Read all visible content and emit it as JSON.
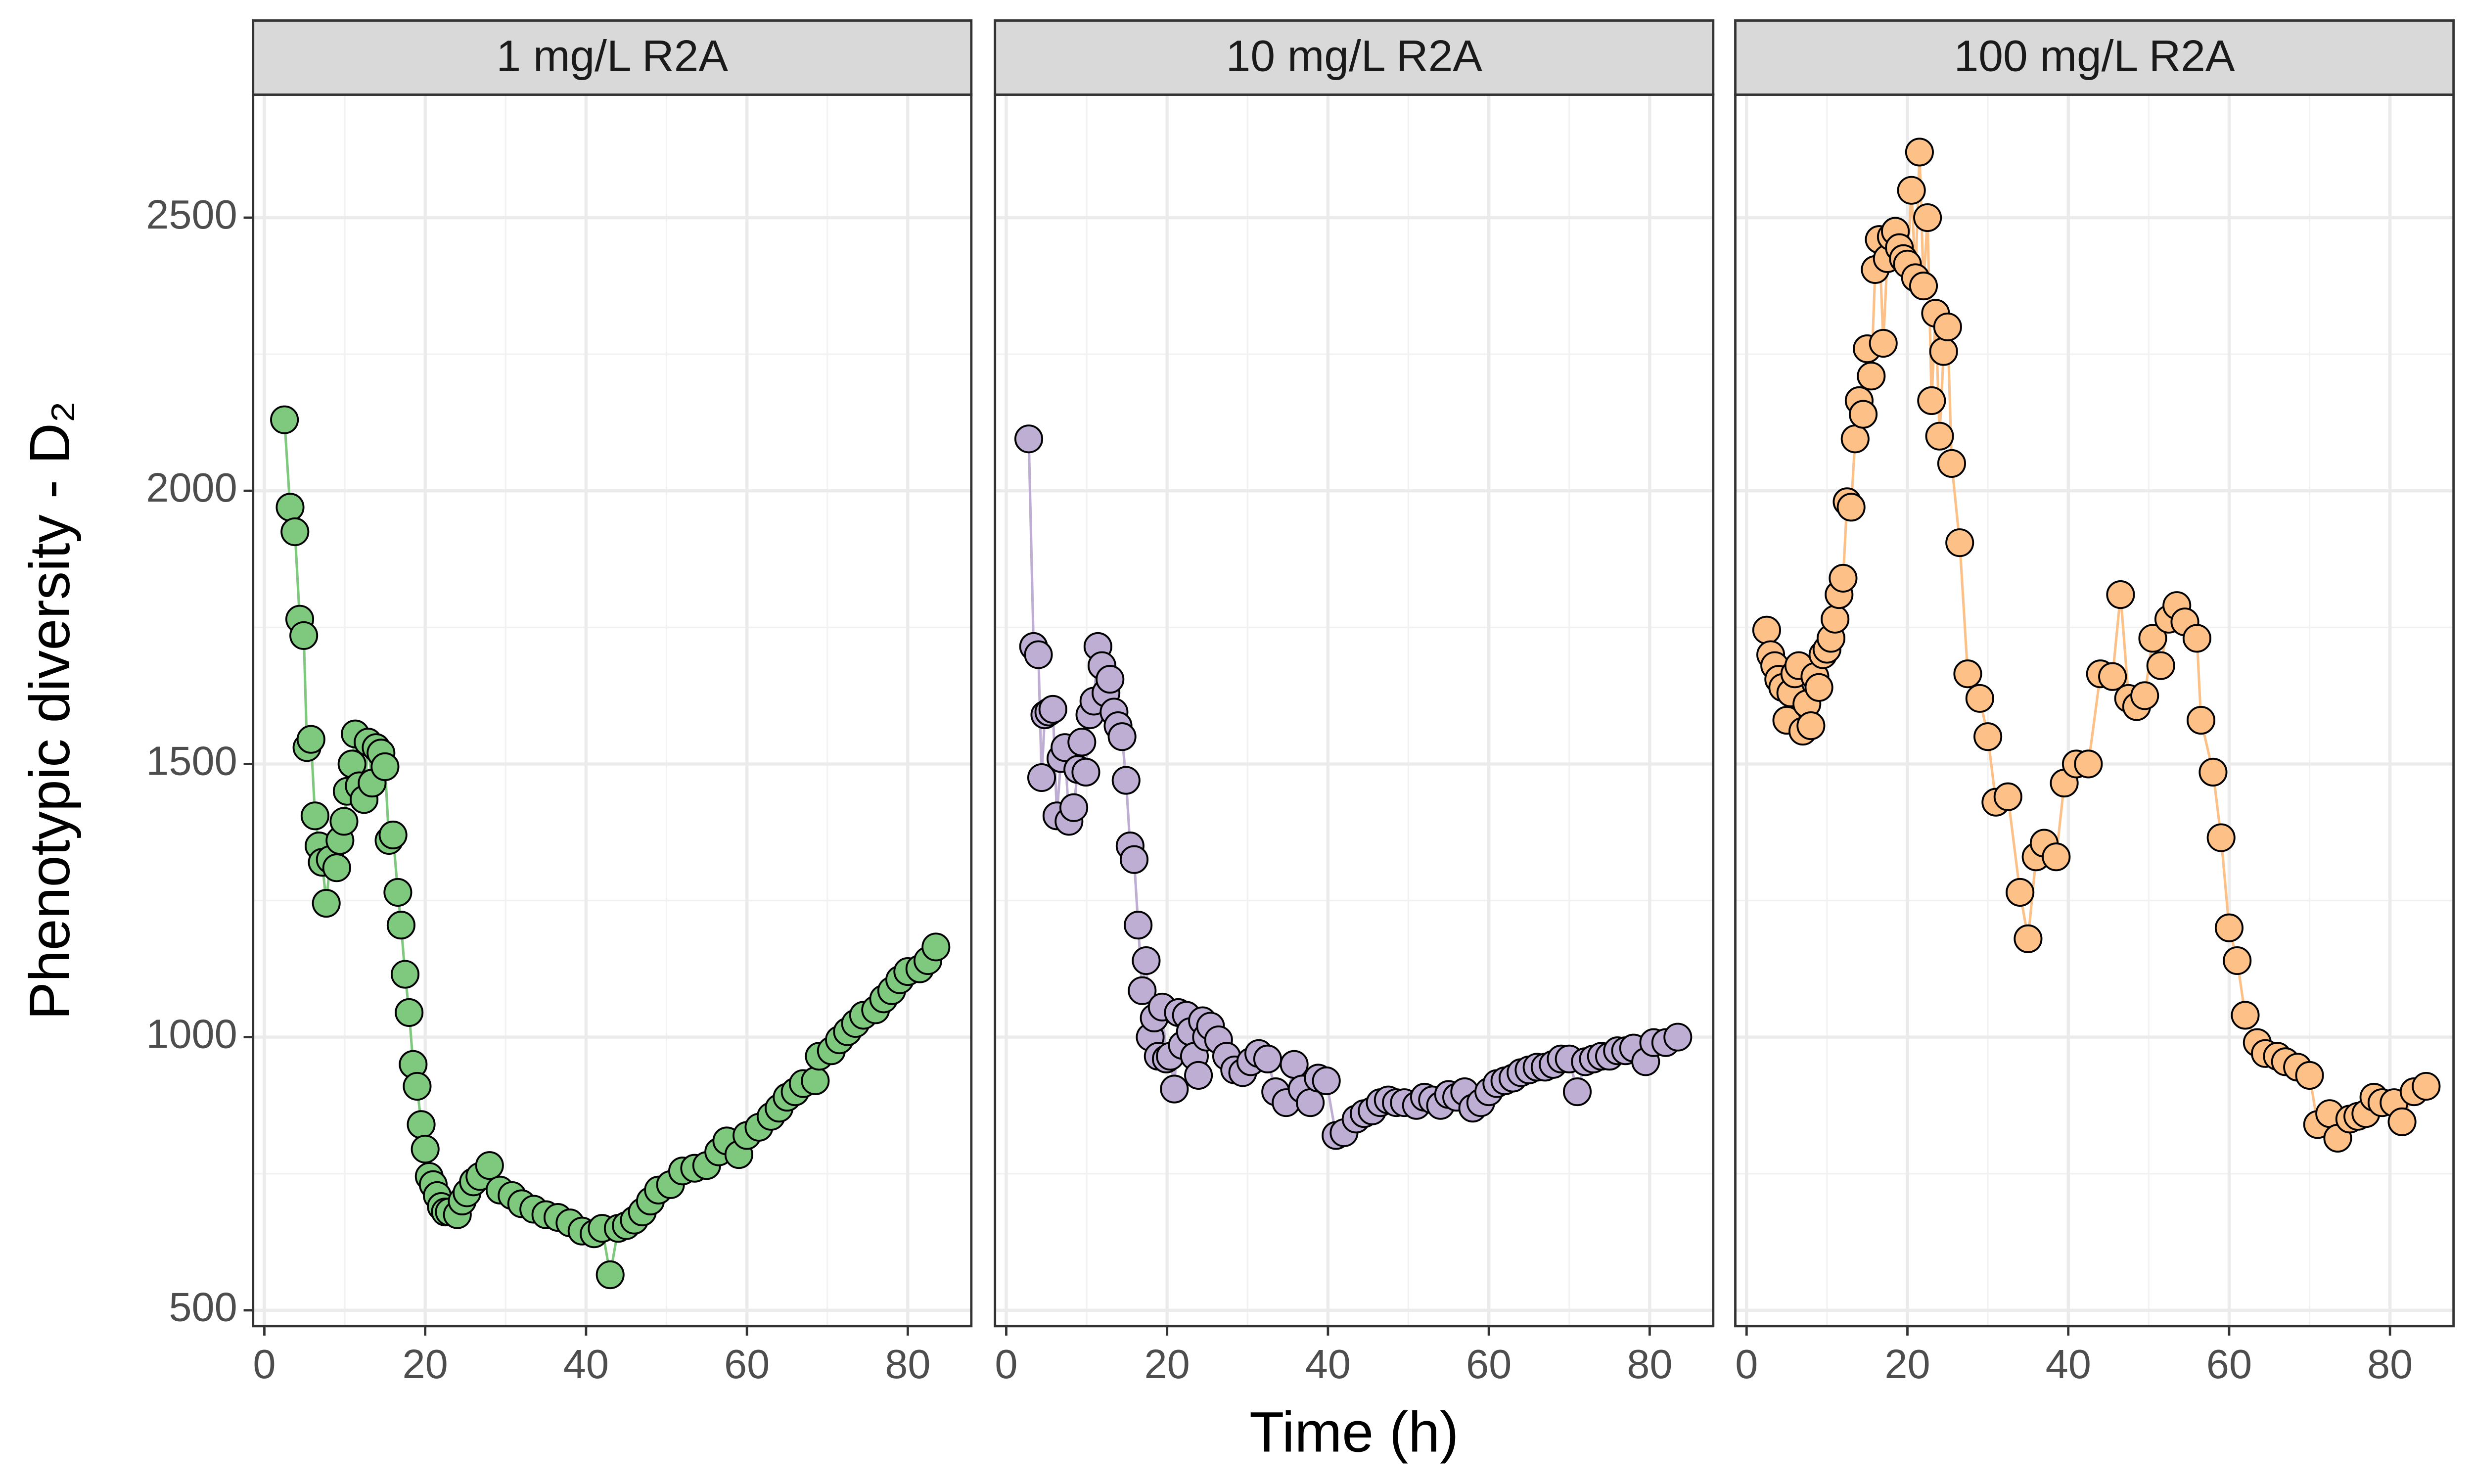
{
  "chart_data": [
    {
      "type": "line",
      "title": "1 mg/L R2A",
      "ylabel": "Phenotypic diversity - D₂",
      "x": [
        2.5,
        3.2,
        3.8,
        4.4,
        4.9,
        5.3,
        5.8,
        6.3,
        6.8,
        7.2,
        7.7,
        8.2,
        9.0,
        9.4,
        9.9,
        10.3,
        10.9,
        11.3,
        11.8,
        12.4,
        12.9,
        13.4,
        13.9,
        14.5,
        15.0,
        15.5,
        16.0,
        16.6,
        17.0,
        17.5,
        18.0,
        18.5,
        19.0,
        19.5,
        20.0,
        20.5,
        21.0,
        21.5,
        22.0,
        22.5,
        23.0,
        24.0,
        24.6,
        25.2,
        26.0,
        26.8,
        28.0,
        29.3,
        30.8,
        32.0,
        33.5,
        35.0,
        36.5,
        38.0,
        39.5,
        41.0,
        42.0,
        43.0,
        44.0,
        45.0,
        46.0,
        47.0,
        48.0,
        49.0,
        50.5,
        52.0,
        53.5,
        55.0,
        56.5,
        57.5,
        59.0,
        60.0,
        61.5,
        63.0,
        64.0,
        65.0,
        66.0,
        67.0,
        68.5,
        69.0,
        70.5,
        71.5,
        72.5,
        73.5,
        74.5,
        76.0,
        77.0,
        78.0,
        79.0,
        80.0,
        81.5,
        82.5,
        83.5
      ],
      "series": [
        {
          "color": "#7fc97f",
          "values": [
            2130,
            1970,
            1925,
            1765,
            1735,
            1530,
            1545,
            1405,
            1350,
            1320,
            1245,
            1325,
            1310,
            1360,
            1395,
            1450,
            1500,
            1555,
            1460,
            1435,
            1540,
            1465,
            1530,
            1520,
            1495,
            1360,
            1370,
            1265,
            1205,
            1115,
            1045,
            950,
            910,
            840,
            795,
            745,
            730,
            710,
            690,
            680,
            680,
            675,
            700,
            715,
            735,
            745,
            765,
            720,
            710,
            695,
            685,
            675,
            670,
            660,
            645,
            640,
            650,
            565,
            650,
            655,
            665,
            680,
            700,
            720,
            730,
            755,
            760,
            765,
            790,
            810,
            785,
            820,
            835,
            855,
            870,
            890,
            900,
            915,
            920,
            965,
            975,
            995,
            1010,
            1025,
            1040,
            1050,
            1070,
            1085,
            1105,
            1120,
            1125,
            1140,
            1165
          ]
        }
      ],
      "xlim": [
        -1.4,
        87.9
      ],
      "ylim": [
        471,
        2725
      ],
      "xticks": [
        0,
        20,
        40,
        60,
        80
      ],
      "yticks": [
        500,
        1000,
        1500,
        2000,
        2500
      ],
      "grid": true
    },
    {
      "type": "line",
      "title": "10 mg/L R2A",
      "xlabel": "Time (h)",
      "x": [
        2.8,
        3.4,
        4.0,
        4.4,
        4.8,
        5.3,
        5.8,
        6.3,
        6.8,
        7.3,
        7.8,
        8.4,
        8.9,
        9.4,
        9.9,
        10.4,
        10.9,
        11.4,
        11.9,
        12.4,
        12.9,
        13.4,
        13.9,
        14.4,
        14.9,
        15.4,
        15.9,
        16.4,
        16.9,
        17.4,
        17.9,
        18.4,
        18.9,
        19.4,
        19.9,
        20.4,
        20.9,
        21.4,
        21.9,
        22.4,
        22.9,
        23.4,
        23.9,
        24.4,
        24.9,
        25.4,
        26.4,
        27.4,
        28.4,
        29.4,
        30.4,
        31.4,
        32.5,
        33.5,
        34.8,
        35.8,
        36.8,
        37.8,
        38.8,
        39.8,
        41.0,
        42.0,
        43.5,
        44.5,
        45.5,
        46.5,
        47.5,
        48.5,
        49.5,
        51.0,
        52.0,
        53.0,
        54.0,
        55.0,
        56.0,
        57.0,
        58.0,
        59.0,
        60.0,
        61.0,
        62.0,
        63.0,
        64.0,
        65.0,
        66.0,
        67.0,
        68.0,
        69.0,
        70.0,
        71.0,
        72.0,
        73.0,
        74.0,
        75.0,
        76.0,
        77.0,
        78.0,
        79.5,
        80.5,
        82.0,
        83.5
      ],
      "series": [
        {
          "color": "#beaed4",
          "values": [
            2095,
            1715,
            1700,
            1475,
            1590,
            1595,
            1600,
            1405,
            1510,
            1530,
            1395,
            1420,
            1490,
            1540,
            1485,
            1590,
            1615,
            1715,
            1680,
            1630,
            1655,
            1595,
            1570,
            1550,
            1470,
            1350,
            1325,
            1205,
            1085,
            1140,
            1000,
            1035,
            965,
            1055,
            960,
            965,
            905,
            1045,
            985,
            1040,
            1010,
            965,
            930,
            1030,
            1000,
            1020,
            995,
            965,
            940,
            935,
            955,
            970,
            960,
            900,
            880,
            950,
            905,
            880,
            925,
            920,
            820,
            825,
            850,
            860,
            865,
            880,
            885,
            880,
            880,
            875,
            890,
            885,
            875,
            895,
            890,
            900,
            870,
            880,
            900,
            915,
            920,
            925,
            935,
            940,
            945,
            945,
            950,
            960,
            960,
            900,
            955,
            960,
            965,
            965,
            975,
            975,
            980,
            955,
            990,
            990,
            1000
          ]
        }
      ],
      "xlim": [
        -1.4,
        87.9
      ],
      "ylim": [
        471,
        2725
      ],
      "xticks": [
        0,
        20,
        40,
        60,
        80
      ],
      "yticks": [
        500,
        1000,
        1500,
        2000,
        2500
      ],
      "grid": true
    },
    {
      "type": "line",
      "title": "100 mg/L R2A",
      "x": [
        2.5,
        3.0,
        3.5,
        4.0,
        4.5,
        5.0,
        5.5,
        6.0,
        6.5,
        7.0,
        7.5,
        8.0,
        8.5,
        9.0,
        9.5,
        10.0,
        10.5,
        11.0,
        11.5,
        12.0,
        12.5,
        13.0,
        13.5,
        14.0,
        14.5,
        15.0,
        15.5,
        16.0,
        16.5,
        17.0,
        17.5,
        18.0,
        18.5,
        19.0,
        19.5,
        20.0,
        20.5,
        21.0,
        21.5,
        22.0,
        22.5,
        23.0,
        23.5,
        24.0,
        24.5,
        25.0,
        25.5,
        26.5,
        27.5,
        29.0,
        30.0,
        31.0,
        32.5,
        34.0,
        35.0,
        36.0,
        37.0,
        38.5,
        39.5,
        41.0,
        42.5,
        44.0,
        45.5,
        46.5,
        47.5,
        48.5,
        49.5,
        50.5,
        51.5,
        52.5,
        53.5,
        54.5,
        56.0,
        56.5,
        58.0,
        59.0,
        60.0,
        61.0,
        62.0,
        63.5,
        64.5,
        66.0,
        67.0,
        68.5,
        70.0,
        71.0,
        72.5,
        73.5,
        75.0,
        76.0,
        77.0,
        78.0,
        79.0,
        80.5,
        81.5,
        83.0,
        84.5
      ],
      "series": [
        {
          "color": "#fdc086",
          "values": [
            1745,
            1700,
            1680,
            1655,
            1640,
            1580,
            1630,
            1665,
            1680,
            1560,
            1610,
            1570,
            1660,
            1640,
            1700,
            1710,
            1730,
            1765,
            1810,
            1840,
            1980,
            1970,
            2095,
            2165,
            2140,
            2260,
            2210,
            2405,
            2460,
            2270,
            2425,
            2465,
            2475,
            2445,
            2425,
            2415,
            2550,
            2390,
            2620,
            2375,
            2500,
            2165,
            2325,
            2100,
            2255,
            2300,
            2050,
            1905,
            1665,
            1620,
            1550,
            1430,
            1440,
            1265,
            1180,
            1330,
            1355,
            1330,
            1465,
            1500,
            1500,
            1665,
            1660,
            1810,
            1620,
            1605,
            1625,
            1730,
            1680,
            1765,
            1790,
            1760,
            1730,
            1580,
            1485,
            1365,
            1200,
            1140,
            1040,
            990,
            970,
            965,
            955,
            945,
            930,
            840,
            860,
            815,
            850,
            855,
            860,
            890,
            880,
            880,
            845,
            900,
            910
          ]
        }
      ],
      "xlim": [
        -1.4,
        87.9
      ],
      "ylim": [
        471,
        2725
      ],
      "xticks": [
        0,
        20,
        40,
        60,
        80
      ],
      "yticks": [
        500,
        1000,
        1500,
        2000,
        2500
      ],
      "grid": true
    }
  ]
}
